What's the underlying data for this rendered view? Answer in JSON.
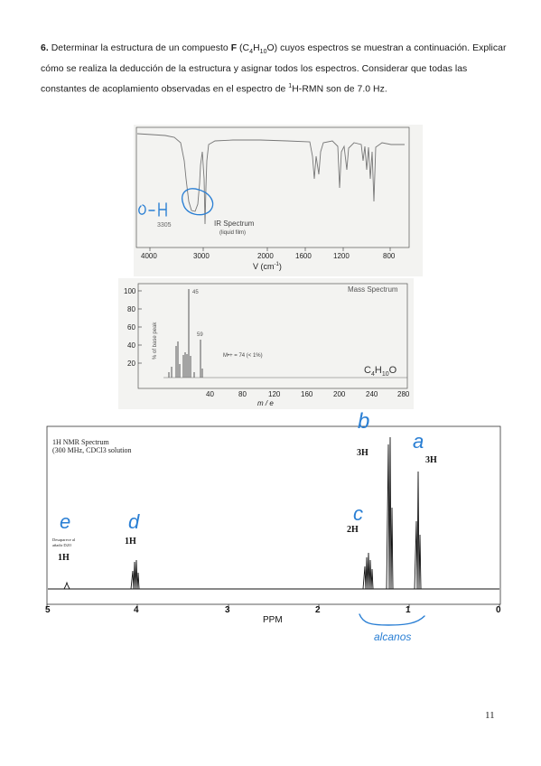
{
  "problem": {
    "number": "6.",
    "text_1": " Determinar la estructura de un compuesto ",
    "compound": "F",
    "formula_prefix": " (C",
    "sub_4": "4",
    "h": "H",
    "sub_10": "10",
    "formula_suffix": "O) cuyos espectros se muestran a continuación. Explicar cómo se realiza la deducción de la estructura y asignar todos los espectros. Considerar que todas las constantes de acoplamiento observadas en el espectro de ",
    "sup_1": "1",
    "text_2": "H-RMN son de 7.0 Hz."
  },
  "ir": {
    "label_3305": "3305",
    "title": "IR Spectrum",
    "subtitle": "(liquid film)",
    "ticks": [
      "4000",
      "3000",
      "2000",
      "1600",
      "1200",
      "800"
    ],
    "xlabel_v": "V",
    "xlabel_unit": " (cm",
    "xlabel_exp": "-1",
    "xlabel_close": ")",
    "annotation": "O-H"
  },
  "ms": {
    "title": "Mass Spectrum",
    "ylabel": "% of base peak",
    "yticks": [
      "100",
      "80",
      "60",
      "40",
      "20"
    ],
    "xticks": [
      "40",
      "80",
      "120",
      "160",
      "200",
      "240",
      "280"
    ],
    "xlabel": "m / e",
    "peak_45": "45",
    "peak_59": "59",
    "molecular_ion": "M•+ = 74  (< 1%)",
    "formula_c": "C",
    "formula_4": "4",
    "formula_h": "H",
    "formula_10": "10",
    "formula_o": "O"
  },
  "nmr": {
    "title_line1": "1H NMR Spectrum",
    "title_line2": "(300 MHz, CDCl3 solution",
    "integrations": {
      "e": "1H",
      "d": "1H",
      "c": "2H",
      "b": "3H",
      "a": "3H"
    },
    "note_line1": "Desaparece al",
    "note_line2": "añadir D2O",
    "xticks": [
      "5",
      "4",
      "3",
      "2",
      "1",
      "0"
    ],
    "xlabel": "PPM",
    "letters": {
      "a": "a",
      "b": "b",
      "c": "c",
      "d": "d",
      "e": "e"
    },
    "alkanes_note": "alcanos"
  },
  "page_number": "11",
  "colors": {
    "handwriting": "#2a7fd4",
    "spectrum_bg": "#f3f3f1"
  }
}
